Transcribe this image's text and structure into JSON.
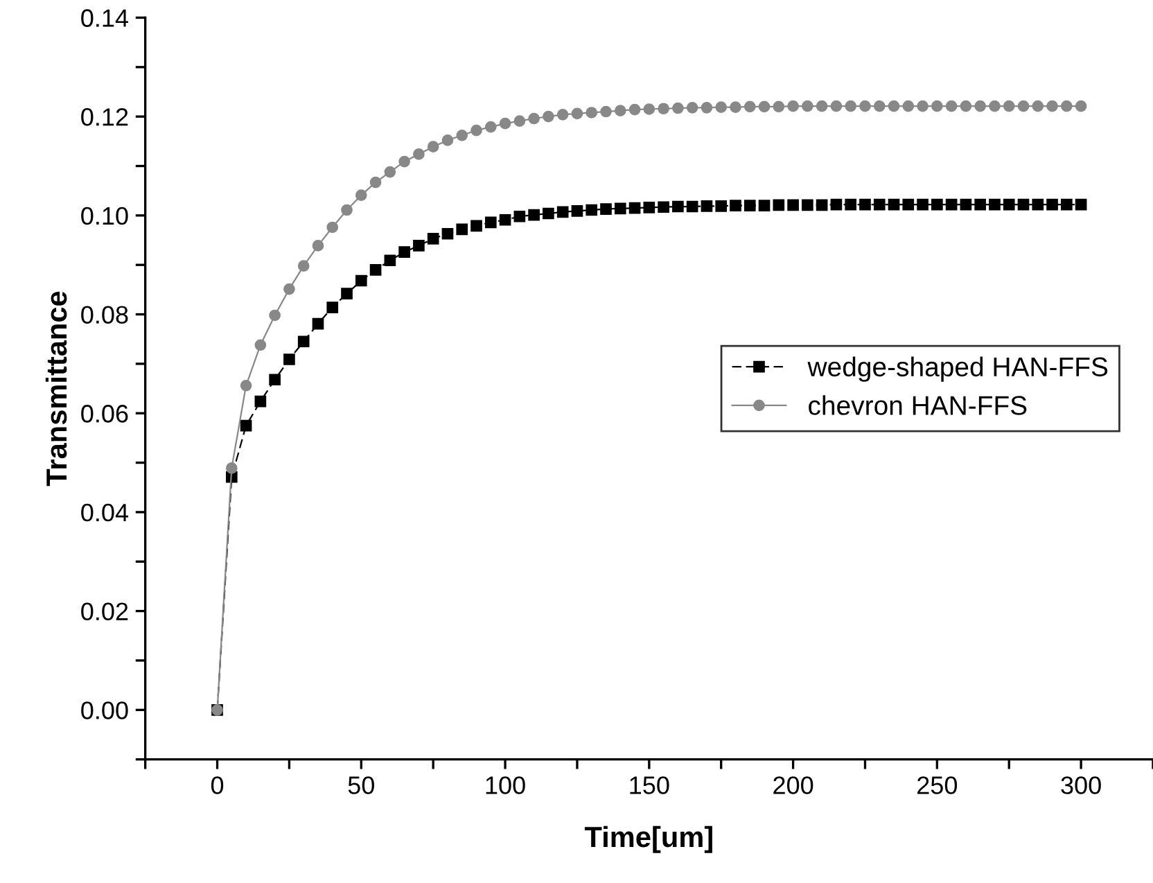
{
  "chart_data": {
    "type": "line",
    "xlabel": "Time[um]",
    "ylabel": "Transmittance",
    "x": [
      0,
      5,
      10,
      15,
      20,
      25,
      30,
      35,
      40,
      45,
      50,
      55,
      60,
      65,
      70,
      75,
      80,
      85,
      90,
      95,
      100,
      105,
      110,
      115,
      120,
      125,
      130,
      135,
      140,
      145,
      150,
      155,
      160,
      165,
      170,
      175,
      180,
      185,
      190,
      195,
      200,
      205,
      210,
      215,
      220,
      225,
      230,
      235,
      240,
      245,
      250,
      255,
      260,
      265,
      270,
      275,
      280,
      285,
      290,
      295,
      300
    ],
    "series": [
      {
        "name": "wedge-shaped HAN-FFS",
        "color": "#000000",
        "marker": "square",
        "line_style": "dashed",
        "values": [
          0,
          0.0471,
          0.0575,
          0.0624,
          0.0668,
          0.0709,
          0.0745,
          0.0781,
          0.0814,
          0.0842,
          0.0868,
          0.089,
          0.0909,
          0.0926,
          0.0939,
          0.0953,
          0.0963,
          0.0972,
          0.0979,
          0.0986,
          0.0991,
          0.0998,
          0.1001,
          0.1004,
          0.1007,
          0.1009,
          0.1011,
          0.1013,
          0.1014,
          0.1015,
          0.1016,
          0.1017,
          0.1018,
          0.1018,
          0.1019,
          0.1019,
          0.102,
          0.102,
          0.102,
          0.1021,
          0.1021,
          0.1021,
          0.1021,
          0.1022,
          0.1022,
          0.1022,
          0.1022,
          0.1022,
          0.1022,
          0.1022,
          0.1022,
          0.1022,
          0.1022,
          0.1022,
          0.1022,
          0.1022,
          0.1022,
          0.1022,
          0.1022,
          0.1022,
          0.1022
        ]
      },
      {
        "name": "chevron HAN-FFS",
        "color": "#888888",
        "marker": "circle",
        "line_style": "solid",
        "values": [
          0,
          0.0489,
          0.0656,
          0.0738,
          0.0798,
          0.0851,
          0.0898,
          0.0939,
          0.0976,
          0.1011,
          0.1041,
          0.1067,
          0.1088,
          0.1109,
          0.1124,
          0.1139,
          0.1152,
          0.1162,
          0.1172,
          0.1179,
          0.1186,
          0.1191,
          0.1196,
          0.12,
          0.1204,
          0.1206,
          0.1208,
          0.121,
          0.1212,
          0.1214,
          0.1215,
          0.1216,
          0.1217,
          0.1218,
          0.1218,
          0.1219,
          0.1219,
          0.122,
          0.122,
          0.122,
          0.1221,
          0.1221,
          0.1221,
          0.1221,
          0.1221,
          0.1221,
          0.1221,
          0.1221,
          0.1221,
          0.1221,
          0.1221,
          0.1221,
          0.1221,
          0.1221,
          0.1221,
          0.1221,
          0.1221,
          0.1221,
          0.1221,
          0.1221,
          0.1221
        ]
      }
    ],
    "xlim": [
      -25,
      325
    ],
    "xticks": [
      {
        "value": -25,
        "label": null
      },
      0,
      {
        "value": 25,
        "label": null
      },
      50,
      {
        "value": 75,
        "label": null
      },
      100,
      {
        "value": 125,
        "label": null
      },
      150,
      {
        "value": 175,
        "label": null
      },
      200,
      {
        "value": 225,
        "label": null
      },
      250,
      {
        "value": 275,
        "label": null
      },
      300,
      {
        "value": 325,
        "label": null
      }
    ],
    "ylim": [
      -0.01,
      0.14
    ],
    "yticks": [
      {
        "value": -0.01,
        "label": null
      },
      {
        "value": 0,
        "label": "0.00"
      },
      {
        "value": 0.01,
        "label": null
      },
      {
        "value": 0.02,
        "label": "0.02"
      },
      {
        "value": 0.03,
        "label": null
      },
      {
        "value": 0.04,
        "label": "0.04"
      },
      {
        "value": 0.05,
        "label": null
      },
      {
        "value": 0.06,
        "label": "0.06"
      },
      {
        "value": 0.07,
        "label": null
      },
      {
        "value": 0.08,
        "label": "0.08"
      },
      {
        "value": 0.09,
        "label": null
      },
      {
        "value": 0.1,
        "label": "0.10"
      },
      {
        "value": 0.11,
        "label": null
      },
      {
        "value": 0.12,
        "label": "0.12"
      },
      {
        "value": 0.13,
        "label": null
      },
      {
        "value": 0.14,
        "label": "0.14"
      }
    ],
    "grid": false,
    "legend": "center right"
  }
}
